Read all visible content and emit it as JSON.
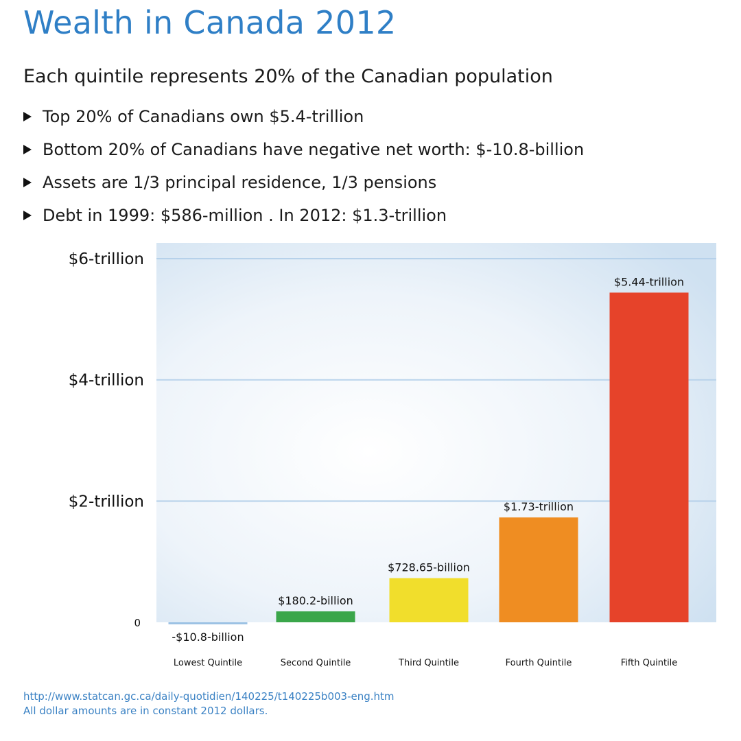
{
  "header": {
    "title": "Wealth in Canada 2012",
    "subtitle": "Each quintile represents 20% of the Canadian population",
    "bullets": [
      "Top 20% of Canadians own $5.4-trillion",
      "Bottom 20% of Canadians have negative net worth: $-10.8-billion",
      "Assets are 1/3 principal residence, 1/3 pensions",
      "Debt in 1999: $586-million . In 2012: $1.3-trillion"
    ]
  },
  "colors": {
    "title": "#2f7fc6",
    "bars": [
      "#9cc2e4",
      "#3aa64a",
      "#f1de2c",
      "#ef8d22",
      "#e6432a"
    ],
    "plot_bg_edge": "#cfe1f1",
    "gridline": "#b6d1ea"
  },
  "chart_data": {
    "type": "bar",
    "categories": [
      "Lowest Quintile",
      "Second Quintile",
      "Third Quintile",
      "Fourth Quintile",
      "Fifth Quintile"
    ],
    "values": [
      -0.0108,
      0.1802,
      0.72865,
      1.73,
      5.44
    ],
    "value_labels": [
      "-$10.8-billion",
      "$180.2-billion",
      "$728.65-billion",
      "$1.73-trillion",
      "$5.44-trillion"
    ],
    "ylim": [
      0,
      6.2
    ],
    "yticks": [
      0,
      2,
      4,
      6
    ],
    "ytick_labels": [
      "0",
      "$2-trillion",
      "$4-trillion",
      "$6-trillion"
    ],
    "grid": true
  },
  "footer": {
    "source_url": "http://www.statcan.gc.ca/daily-quotidien/140225/t140225b003-eng.htm",
    "note": "All dollar amounts are in constant 2012 dollars."
  }
}
